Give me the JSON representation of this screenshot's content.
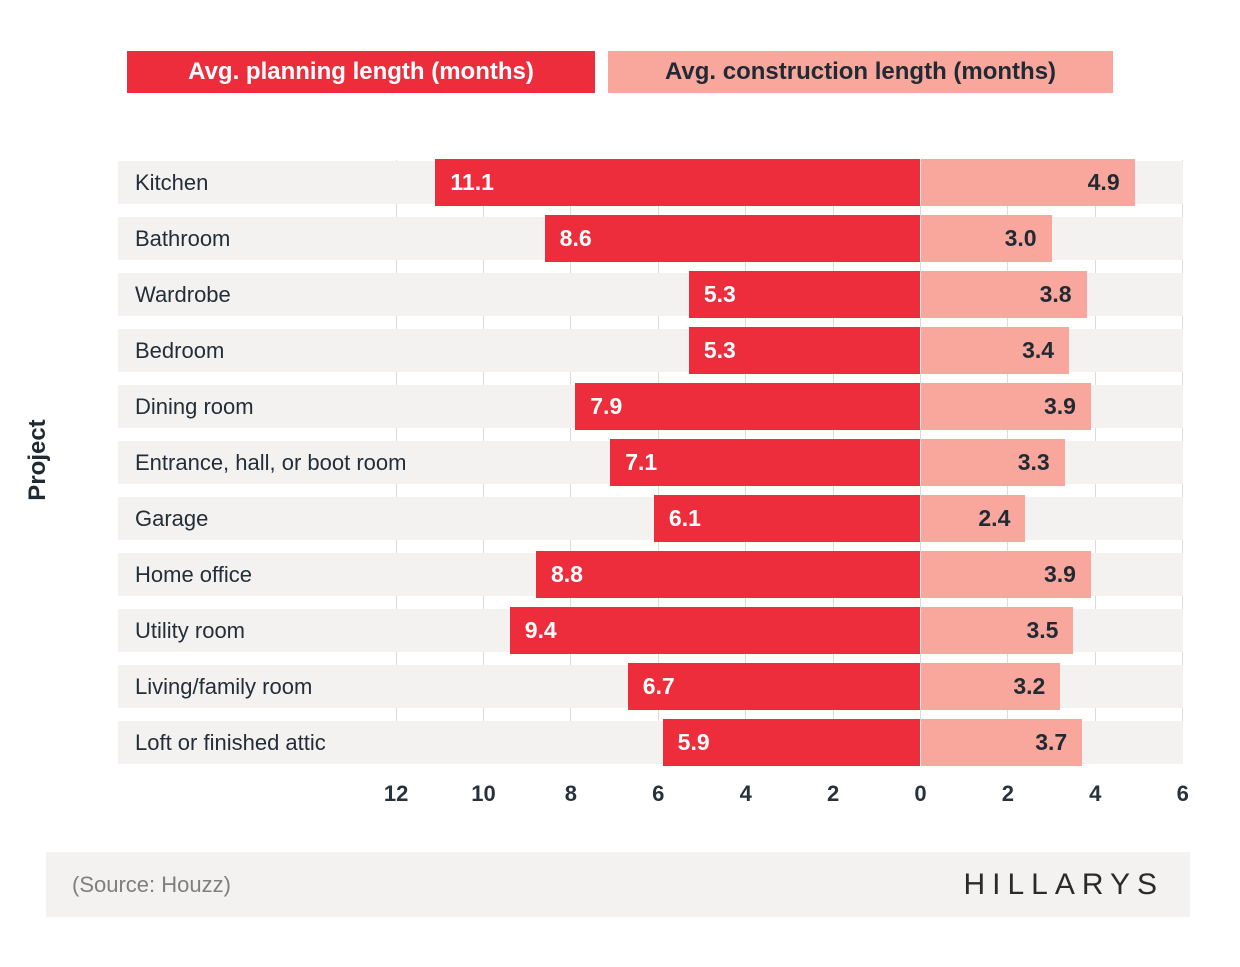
{
  "legend": {
    "planning_label": "Avg. planning length (months)",
    "construction_label": "Avg. construction length (months)"
  },
  "chart_data": {
    "type": "bar",
    "orientation": "horizontal-diverging",
    "title": "",
    "ylabel": "Project",
    "xlabel": "",
    "categories": [
      "Kitchen",
      "Bathroom",
      "Wardrobe",
      "Bedroom",
      "Dining room",
      "Entrance, hall, or boot room",
      "Garage",
      "Home office",
      "Utility room",
      "Living/family room",
      "Loft or finished attic"
    ],
    "series": [
      {
        "name": "Avg. planning length (months)",
        "side": "left",
        "color": "#EE2D3C",
        "label_color": "#FFFFFF",
        "values": [
          11.1,
          8.6,
          5.3,
          5.3,
          7.9,
          7.1,
          6.1,
          8.8,
          9.4,
          6.7,
          5.9
        ]
      },
      {
        "name": "Avg. construction length (months)",
        "side": "right",
        "color": "#F9A69D",
        "label_color": "#1F2A33",
        "values": [
          4.9,
          3.0,
          3.8,
          3.4,
          3.9,
          3.3,
          2.4,
          3.9,
          3.5,
          3.2,
          3.7
        ]
      }
    ],
    "x_ticks_left": [
      12,
      10,
      8,
      6,
      4,
      2,
      0
    ],
    "x_ticks_right": [
      2,
      4,
      6
    ],
    "xlim_left": 12,
    "xlim_right": 6,
    "grid": true,
    "legend_position": "top"
  },
  "colors": {
    "planning": "#EE2D3C",
    "construction": "#F9A69D",
    "row_stripe": "#F3F2F0",
    "gridline": "#DBDBDB",
    "text_dark": "#1F2A33",
    "source_gray": "#7F7F7F"
  },
  "footer": {
    "source": "(Source: Houzz)",
    "brand": "HILLARYS"
  }
}
